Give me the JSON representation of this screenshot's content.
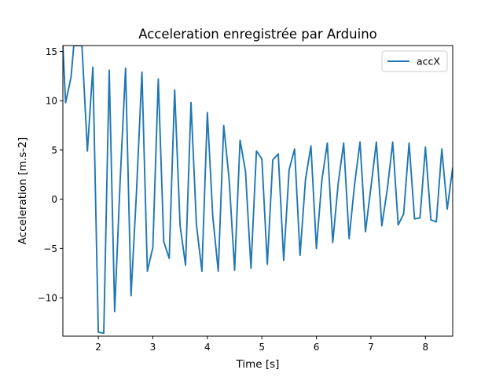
{
  "chart_data": {
    "type": "line",
    "title": "Acceleration enregistrée par Arduino",
    "xlabel": "Time [s]",
    "ylabel": "Acceleration [m.s-2]",
    "xlim": [
      1.35,
      8.5
    ],
    "ylim": [
      -13.9,
      15.6
    ],
    "xticks": [
      2,
      3,
      4,
      5,
      6,
      7,
      8
    ],
    "yticks": [
      -10,
      -5,
      0,
      5,
      10,
      15
    ],
    "grid": false,
    "legend_position": "top-right",
    "series": [
      {
        "name": "accX",
        "color": "#1f77b4",
        "x": [
          1.35,
          1.4,
          1.5,
          1.55,
          1.6,
          1.7,
          1.8,
          1.9,
          2.0,
          2.1,
          2.2,
          2.3,
          2.4,
          2.5,
          2.6,
          2.7,
          2.8,
          2.9,
          3.0,
          3.1,
          3.2,
          3.3,
          3.4,
          3.5,
          3.6,
          3.7,
          3.8,
          3.9,
          4.0,
          4.1,
          4.2,
          4.3,
          4.4,
          4.5,
          4.6,
          4.7,
          4.8,
          4.9,
          5.0,
          5.1,
          5.2,
          5.3,
          5.4,
          5.5,
          5.6,
          5.7,
          5.8,
          5.9,
          6.0,
          6.1,
          6.2,
          6.3,
          6.4,
          6.5,
          6.6,
          6.7,
          6.8,
          6.9,
          7.0,
          7.1,
          7.2,
          7.3,
          7.4,
          7.5,
          7.6,
          7.7,
          7.8,
          7.9,
          8.0,
          8.1,
          8.2,
          8.3,
          8.4,
          8.5
        ],
        "y": [
          15.6,
          9.8,
          12.4,
          15.6,
          15.6,
          15.6,
          4.9,
          13.4,
          -13.5,
          -13.6,
          13.1,
          -11.4,
          1.8,
          13.3,
          -9.8,
          0.7,
          12.9,
          -7.3,
          -4.9,
          12.2,
          -4.3,
          -6.0,
          11.1,
          -2.7,
          -6.7,
          9.8,
          -2.6,
          -7.3,
          8.8,
          -1.8,
          -7.3,
          7.5,
          2.0,
          -7.2,
          6.0,
          2.8,
          -7.0,
          4.9,
          4.1,
          -6.6,
          4.0,
          4.6,
          -6.2,
          3.0,
          5.1,
          -5.7,
          2.0,
          5.4,
          -5.0,
          1.9,
          5.7,
          -4.4,
          1.6,
          5.7,
          -4.0,
          1.5,
          5.8,
          -3.3,
          1.2,
          5.8,
          -2.7,
          1.0,
          5.8,
          -2.6,
          -1.5,
          5.7,
          -2.0,
          -1.9,
          5.3,
          -2.1,
          -2.3,
          5.1,
          -1.0,
          3.2
        ]
      }
    ]
  }
}
